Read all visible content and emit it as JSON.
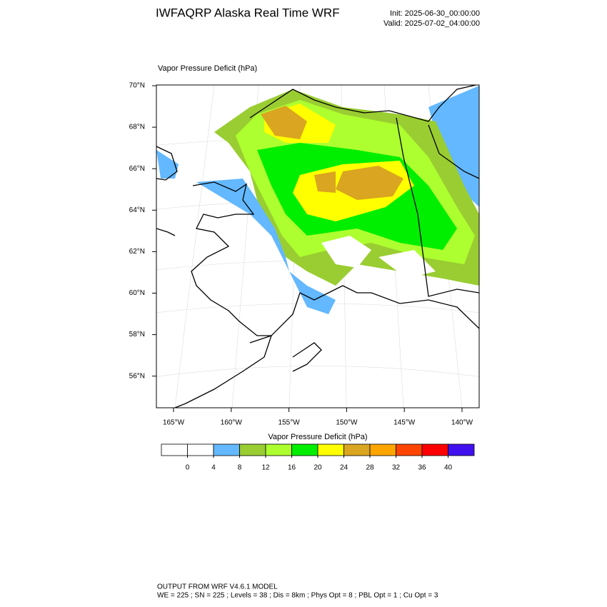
{
  "header": {
    "title": "IWFAQRP Alaska Real Time WRF",
    "init": "Init: 2025-06-30_00:00:00",
    "valid": "Valid: 2025-07-02_04:00:00"
  },
  "map": {
    "subtitle": "Vapor Pressure Deficit   (hPa)",
    "lat_labels": [
      "70°N",
      "68°N",
      "66°N",
      "64°N",
      "62°N",
      "60°N",
      "58°N",
      "56°N"
    ],
    "lon_labels": [
      "165°W",
      "160°W",
      "155°W",
      "150°W",
      "145°W",
      "140°W"
    ]
  },
  "colorbar": {
    "title": "Vapor Pressure Deficit  (hPa)",
    "levels": [
      0,
      4,
      8,
      12,
      16,
      20,
      24,
      28,
      32,
      36,
      40
    ],
    "colors": [
      "#ffffff",
      "#ffffff",
      "#63b8ff",
      "#9acd32",
      "#adff2f",
      "#00ee00",
      "#ffff00",
      "#daa520",
      "#ffa500",
      "#ff4500",
      "#ff0000",
      "#4010ee"
    ]
  },
  "footer": {
    "line1": "OUTPUT FROM WRF V4.6.1 MODEL",
    "line2": "WE = 225 ; SN = 225 ; Levels = 38 ; Dis = 8km ; Phys Opt = 8 ; PBL Opt = 1 ; Cu Opt = 3"
  }
}
